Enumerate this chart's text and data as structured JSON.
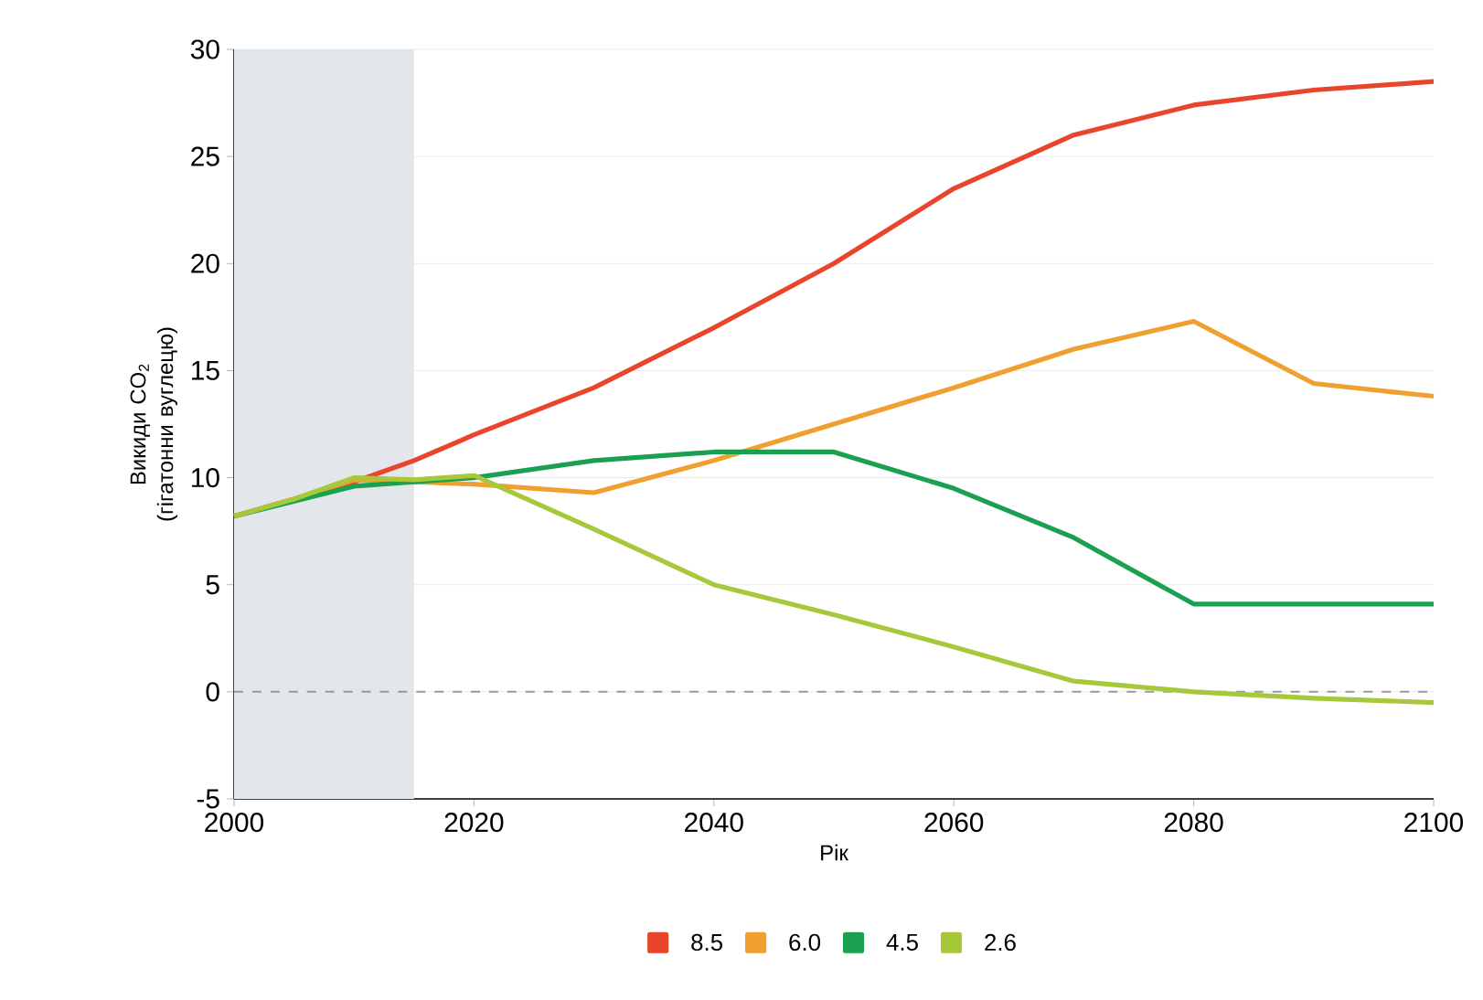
{
  "chart_data": {
    "type": "line",
    "xlabel": "Рік",
    "ylabel": "Викиди CO$_{2}$ (гігатонни вуглецю)",
    "x": [
      2000,
      2005,
      2010,
      2015,
      2020,
      2030,
      2040,
      2050,
      2060,
      2070,
      2080,
      2090,
      2100
    ],
    "xlim": [
      2000,
      2100
    ],
    "xticks": [
      2000,
      2020,
      2040,
      2060,
      2080,
      2100
    ],
    "ylim": [
      -5,
      30
    ],
    "yticks": [
      -5,
      0,
      5,
      10,
      15,
      20,
      25,
      30
    ],
    "grid": "y",
    "legend": "bottom",
    "marker": "none",
    "line_style": "solid",
    "series": [
      {
        "name": "8.5",
        "color": "#e8452c",
        "values": [
          8.2,
          null,
          9.8,
          10.8,
          12.0,
          14.2,
          17.0,
          20.0,
          23.5,
          26.0,
          27.4,
          28.1,
          28.5
        ]
      },
      {
        "name": "6.0",
        "color": "#f0a030",
        "values": [
          8.2,
          9.0,
          9.9,
          9.8,
          9.7,
          9.3,
          10.8,
          12.5,
          14.2,
          16.0,
          17.3,
          14.4,
          13.8
        ]
      },
      {
        "name": "4.5",
        "color": "#1aa050",
        "values": [
          8.2,
          8.9,
          9.6,
          9.8,
          10.0,
          10.8,
          11.2,
          11.2,
          9.5,
          7.2,
          4.1,
          4.1,
          4.1
        ]
      },
      {
        "name": "2.6",
        "color": "#a8c83c",
        "values": [
          8.2,
          9.0,
          10.0,
          9.9,
          10.1,
          7.6,
          5.0,
          3.6,
          2.1,
          0.5,
          0.0,
          -0.3,
          -0.5
        ]
      }
    ],
    "ref_lines": [
      {
        "axis": "y",
        "value": 0,
        "color": "#999999",
        "line_style": "dashed"
      }
    ],
    "bands": [
      {
        "axis": "x",
        "from": 2000,
        "to": 2015,
        "color": "#e3e6ea"
      }
    ]
  }
}
